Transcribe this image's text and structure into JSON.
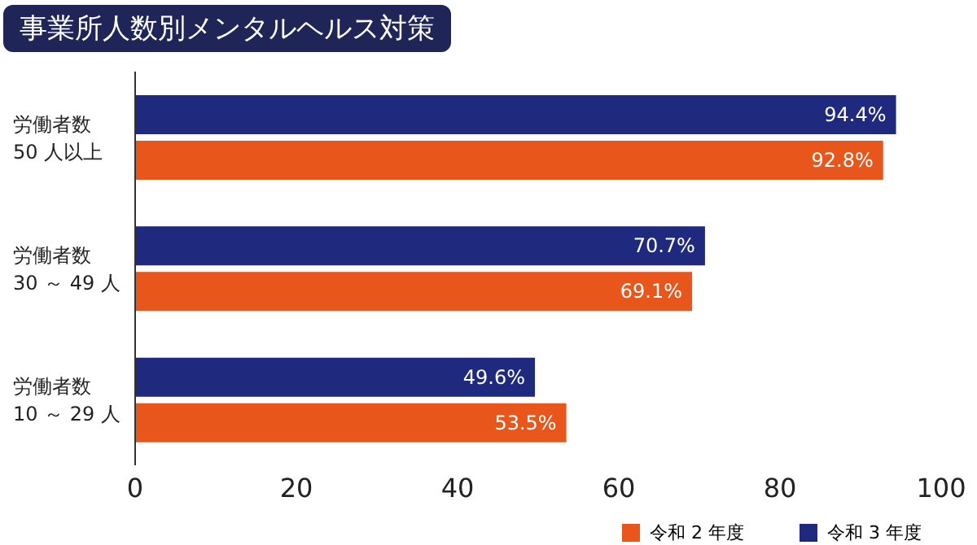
{
  "chart_data": {
    "type": "bar",
    "orientation": "horizontal",
    "title": "事業所人数別メンタルヘルス対策",
    "categories": [
      "労働者数\n50 人以上",
      "労働者数\n30 ～ 49 人",
      "労働者数\n10 ～ 29 人"
    ],
    "series": [
      {
        "name": "令和 3 年度",
        "color": "#1f2a7e",
        "values": [
          94.4,
          70.7,
          49.6
        ],
        "value_labels": [
          "94.4%",
          "70.7%",
          "49.6%"
        ]
      },
      {
        "name": "令和 2 年度",
        "color": "#e8561c",
        "values": [
          92.8,
          69.1,
          53.5
        ],
        "value_labels": [
          "92.8%",
          "69.1%",
          "53.5%"
        ]
      }
    ],
    "xlim": [
      0,
      100
    ],
    "xticks": [
      0,
      20,
      40,
      60,
      80,
      100
    ],
    "legend": "bottom right"
  }
}
